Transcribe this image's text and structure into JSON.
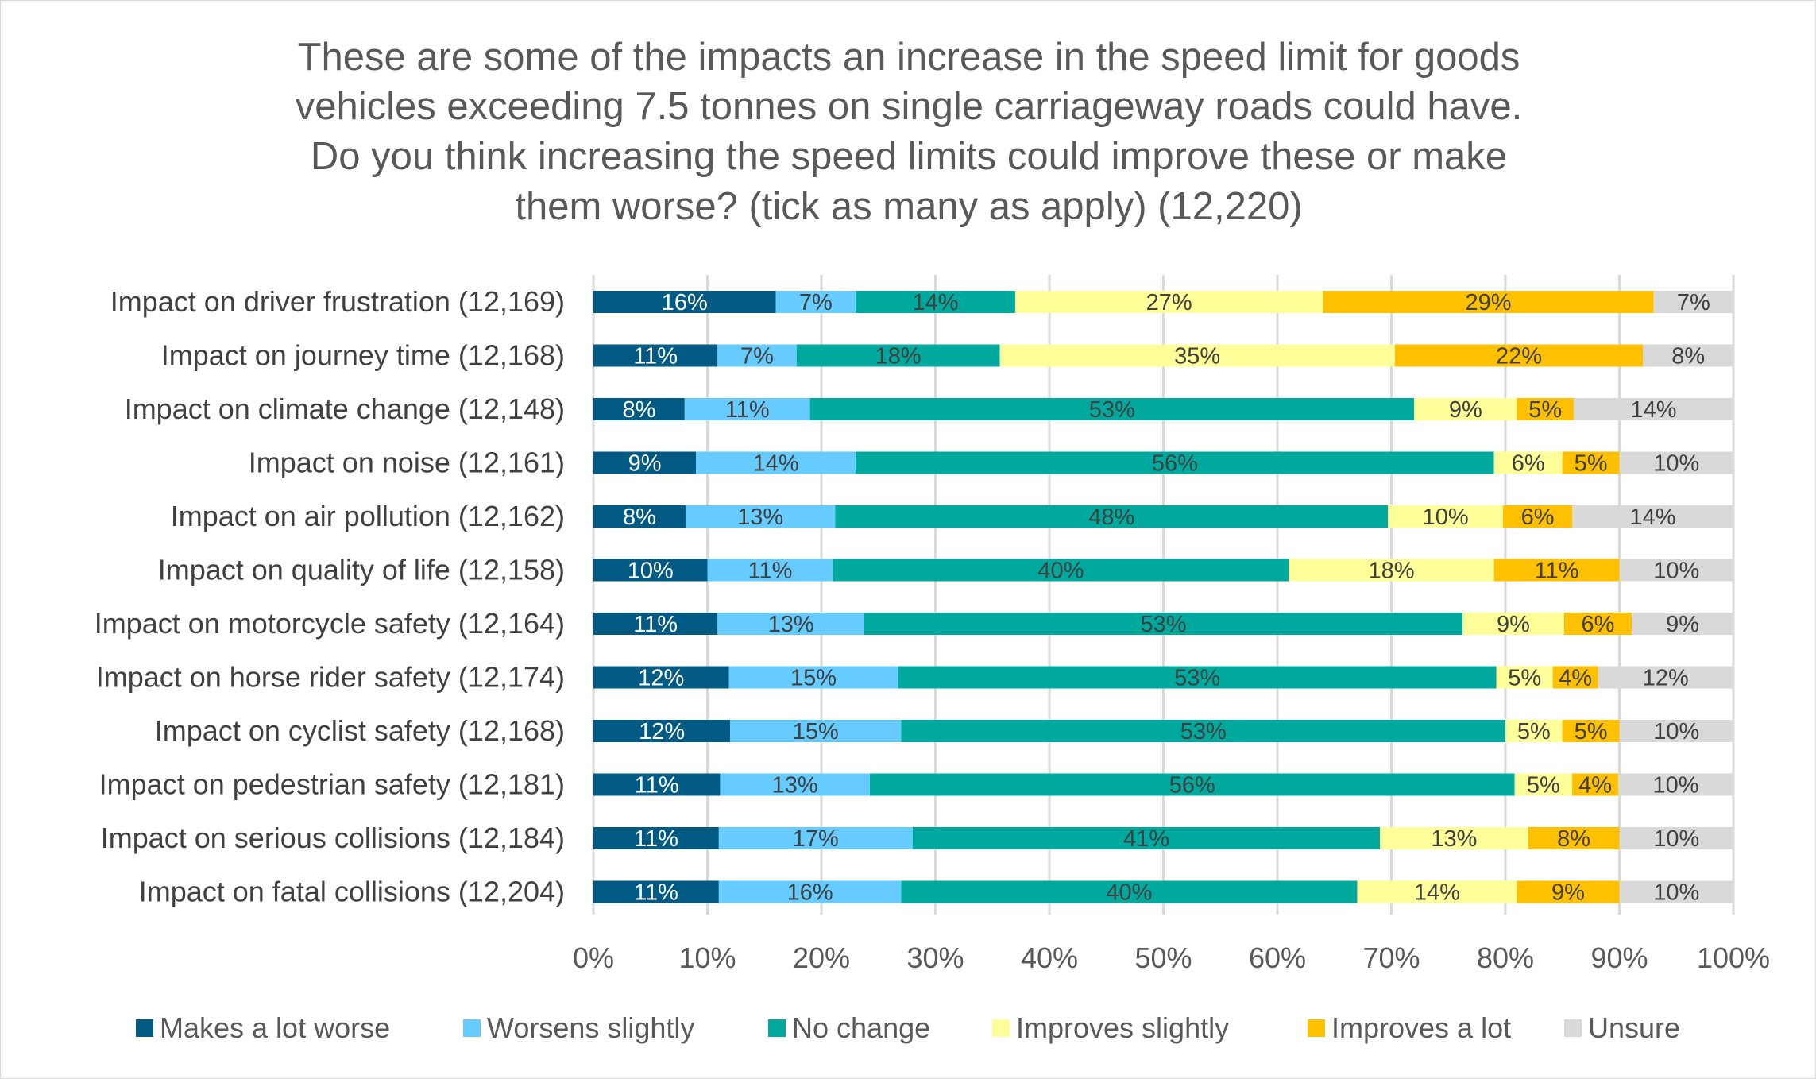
{
  "chart_data": {
    "type": "bar",
    "orientation": "horizontal",
    "stacked": "percent",
    "title_lines": [
      "These are some of the impacts an increase in the speed limit for goods",
      "vehicles exceeding 7.5 tonnes on single carriageway roads could have.",
      "Do you think increasing the speed limits could improve these or make",
      "them worse? (tick as many as apply) (12,220)"
    ],
    "categories": [
      "Impact on driver frustration (12,169)",
      "Impact on journey time (12,168)",
      "Impact on climate change (12,148)",
      "Impact on noise (12,161)",
      "Impact on air pollution (12,162)",
      "Impact on quality of life (12,158)",
      "Impact on motorcycle safety (12,164)",
      "Impact on horse rider safety (12,174)",
      "Impact on cyclist safety (12,168)",
      "Impact on pedestrian safety (12,181)",
      "Impact on serious collisions (12,184)",
      "Impact on fatal collisions (12,204)"
    ],
    "series": [
      {
        "name": "Makes a lot worse",
        "color": "#005A84",
        "label_color": "#ffffff",
        "values": [
          16,
          11,
          8,
          9,
          8,
          10,
          11,
          12,
          12,
          11,
          11,
          11
        ]
      },
      {
        "name": "Worsens slightly",
        "color": "#66CCFF",
        "label_color": "#404040",
        "values": [
          7,
          7,
          11,
          14,
          13,
          11,
          13,
          15,
          15,
          13,
          17,
          16
        ]
      },
      {
        "name": "No change",
        "color": "#00A99D",
        "label_color": "#404040",
        "values": [
          14,
          18,
          53,
          56,
          48,
          40,
          53,
          53,
          53,
          56,
          41,
          40
        ]
      },
      {
        "name": "Improves slightly",
        "color": "#FFFF99",
        "label_color": "#404040",
        "values": [
          27,
          35,
          9,
          6,
          10,
          18,
          9,
          5,
          5,
          5,
          13,
          14
        ]
      },
      {
        "name": "Improves a lot",
        "color": "#FFC000",
        "label_color": "#404040",
        "values": [
          29,
          22,
          5,
          5,
          6,
          11,
          6,
          4,
          5,
          4,
          8,
          9
        ]
      },
      {
        "name": "Unsure",
        "color": "#D9D9D9",
        "label_color": "#404040",
        "values": [
          7,
          8,
          14,
          10,
          14,
          10,
          9,
          12,
          10,
          10,
          10,
          10
        ]
      }
    ],
    "xlim": [
      0,
      100
    ],
    "x_ticks": [
      "0%",
      "10%",
      "20%",
      "30%",
      "40%",
      "50%",
      "60%",
      "70%",
      "80%",
      "90%",
      "100%"
    ],
    "grid": true,
    "legend_position": "bottom"
  }
}
